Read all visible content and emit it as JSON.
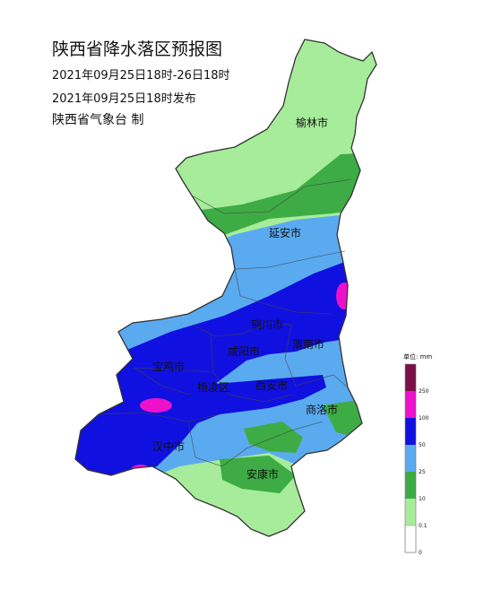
{
  "map": {
    "title": "陕西省降水落区预报图",
    "period": "2021年09月25日18时-26日18时",
    "issued": "2021年09月25日18时发布",
    "producer": "陕西省气象台 制"
  },
  "cities": [
    {
      "name": "榆林市"
    },
    {
      "name": "延安市"
    },
    {
      "name": "铜川市"
    },
    {
      "name": "咸阳市"
    },
    {
      "name": "渭南市"
    },
    {
      "name": "宝鸡市"
    },
    {
      "name": "杨凌区"
    },
    {
      "name": "西安市"
    },
    {
      "name": "商洛市"
    },
    {
      "name": "汉中市"
    },
    {
      "name": "安康市"
    }
  ],
  "legend": {
    "unit": "单位: mm",
    "ticks": [
      "250",
      "100",
      "50",
      "25",
      "10",
      "0.1",
      "0"
    ],
    "colors": [
      "#7a0f4a",
      "#ee11cc",
      "#1010e0",
      "#5aaaf0",
      "#3dac44",
      "#a6ec9a",
      "#ffffff"
    ]
  }
}
